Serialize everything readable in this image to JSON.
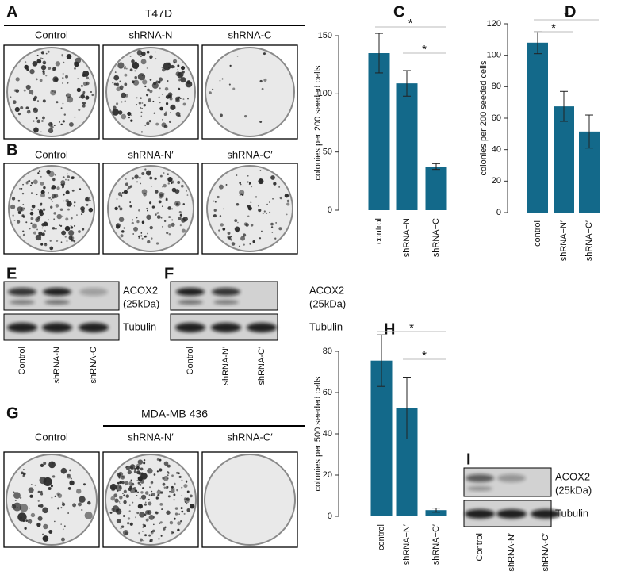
{
  "panel_letters": [
    "A",
    "B",
    "C",
    "D",
    "E",
    "F",
    "G",
    "H",
    "I"
  ],
  "panel_A": {
    "title": "T47D",
    "columns": [
      "Control",
      "shRNA-N",
      "shRNA-C"
    ]
  },
  "panel_B": {
    "columns": [
      "Control",
      "shRNA-N′",
      "shRNA-C′"
    ]
  },
  "panel_E": {
    "bands": [
      "ACOX2",
      "(25kDa)",
      "Tubulin"
    ],
    "lanes": [
      "Control",
      "shRNA-N",
      "shRNA-C"
    ]
  },
  "panel_F": {
    "bands": [
      "ACOX2",
      "(25kDa)",
      "Tubulin"
    ],
    "lanes": [
      "Control",
      "shRNA-N′",
      "shRNA-C′"
    ]
  },
  "panel_G": {
    "title": "MDA-MB 436",
    "columns": [
      "Control",
      "shRNA-N′",
      "shRNA-C′"
    ]
  },
  "panel_I": {
    "bands": [
      "ACOX2",
      "(25kDa)",
      "Tubulin"
    ],
    "lanes": [
      "Control",
      "shRNA-N′",
      "shRNA-C′"
    ]
  },
  "chart_data": [
    {
      "type": "bar",
      "ylabel": "colonies per 200 seeded cells",
      "categories": [
        "control",
        "shRNA−N",
        "shRNA−C"
      ],
      "values": [
        135,
        109,
        37.5
      ],
      "errors": [
        17,
        11,
        2.5
      ],
      "color": "#13698a",
      "ylim": [
        0,
        150
      ],
      "yticks": [
        0,
        50,
        100,
        150
      ],
      "annotations": [
        "*",
        "*"
      ]
    },
    {
      "type": "bar",
      "ylabel": "colonies per 200 seeded cells",
      "categories": [
        "control",
        "shRNA−N′",
        "shRNA−C′"
      ],
      "values": [
        108,
        67.5,
        51.5
      ],
      "errors": [
        7,
        9.5,
        10.5
      ],
      "color": "#13698a",
      "ylim": [
        0,
        120
      ],
      "yticks": [
        0,
        20,
        40,
        60,
        80,
        100,
        120
      ],
      "annotations": [
        "*",
        "*"
      ]
    },
    {
      "type": "bar",
      "ylabel": "colonies per 500 seeded cells",
      "categories": [
        "control",
        "shRNA−N′",
        "shRNA−C′"
      ],
      "values": [
        75.5,
        52.5,
        3
      ],
      "errors": [
        12.5,
        15,
        1
      ],
      "color": "#13698a",
      "ylim": [
        0,
        80
      ],
      "yticks": [
        0,
        20,
        40,
        60,
        80
      ],
      "annotations": [
        "*",
        "*"
      ]
    }
  ]
}
